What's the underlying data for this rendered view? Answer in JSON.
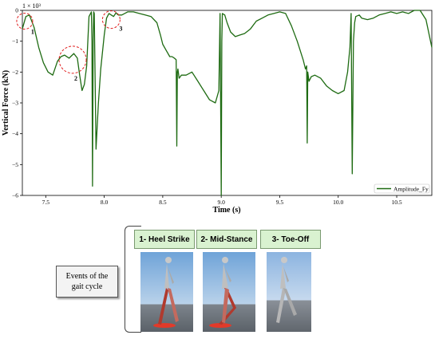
{
  "chart_data": {
    "type": "line",
    "xlabel": "Time (s)",
    "ylabel": "Vertical Force (kN)",
    "multiplier_label": "1 × 10³",
    "xlim": [
      7.3,
      10.8
    ],
    "ylim": [
      -6.0,
      0.0
    ],
    "x_ticks": [
      7.5,
      8.0,
      8.5,
      9.0,
      9.5,
      10.0,
      10.5
    ],
    "x_tick_labels": [
      "7.5",
      "8.0",
      "8.5",
      "9.0",
      "9.5",
      "10.0",
      "10.5"
    ],
    "y_ticks": [
      0,
      -1,
      -2,
      -3,
      -4,
      -5,
      -6
    ],
    "y_tick_labels": [
      "0",
      "−1",
      "−2",
      "−3",
      "−4",
      "−5",
      "−6"
    ],
    "legend_position": "bottom-right",
    "series": [
      {
        "name": "Amplitude_Fy",
        "color": "#1e6b12",
        "x": [
          7.3,
          7.33,
          7.36,
          7.4,
          7.44,
          7.48,
          7.52,
          7.56,
          7.6,
          7.63,
          7.66,
          7.7,
          7.74,
          7.77,
          7.79,
          7.81,
          7.83,
          7.85,
          7.87,
          7.89,
          7.895,
          7.9,
          7.905,
          7.91,
          7.915,
          7.93,
          7.95,
          7.97,
          8.0,
          8.02,
          8.04,
          8.06,
          8.08,
          8.1,
          8.12,
          8.15,
          8.2,
          8.25,
          8.3,
          8.35,
          8.4,
          8.45,
          8.48,
          8.5,
          8.53,
          8.56,
          8.58,
          8.6,
          8.615,
          8.62,
          8.625,
          8.63,
          8.64,
          8.66,
          8.7,
          8.75,
          8.8,
          8.85,
          8.9,
          8.95,
          8.98,
          8.99,
          9.0,
          9.005,
          9.01,
          9.03,
          9.05,
          9.08,
          9.12,
          9.16,
          9.2,
          9.25,
          9.3,
          9.35,
          9.4,
          9.45,
          9.5,
          9.55,
          9.6,
          9.65,
          9.7,
          9.72,
          9.73,
          9.735,
          9.74,
          9.75,
          9.77,
          9.8,
          9.85,
          9.9,
          9.95,
          10.0,
          10.05,
          10.08,
          10.1,
          10.11,
          10.12,
          10.13,
          10.14,
          10.15,
          10.18,
          10.2,
          10.25,
          10.3,
          10.35,
          10.4,
          10.45,
          10.5,
          10.55,
          10.6,
          10.65,
          10.7,
          10.75,
          10.8
        ],
        "y": [
          -0.6,
          -0.2,
          -0.15,
          -0.55,
          -1.2,
          -1.7,
          -2.0,
          -2.1,
          -1.65,
          -1.5,
          -1.45,
          -1.55,
          -1.4,
          -1.55,
          -2.1,
          -2.6,
          -2.4,
          -1.8,
          -0.2,
          -0.05,
          -1.0,
          -5.7,
          -1.0,
          -0.05,
          -0.1,
          -4.5,
          -3.0,
          -1.9,
          -0.8,
          -0.25,
          -0.1,
          -0.15,
          -0.2,
          -0.08,
          -0.15,
          -0.15,
          -0.05,
          -0.05,
          -0.1,
          -0.15,
          -0.2,
          -0.4,
          -0.8,
          -1.1,
          -1.3,
          -1.5,
          -1.5,
          -1.55,
          -1.6,
          -4.4,
          -2.0,
          -1.9,
          -2.2,
          -2.1,
          -2.1,
          -2.0,
          -2.3,
          -2.6,
          -2.9,
          -3.0,
          -2.6,
          -0.1,
          -6.0,
          -1.0,
          -0.1,
          -0.15,
          -0.4,
          -0.7,
          -0.85,
          -0.8,
          -0.75,
          -0.6,
          -0.35,
          -0.25,
          -0.15,
          -0.1,
          -0.05,
          -0.1,
          -0.5,
          -1.0,
          -1.6,
          -1.9,
          -1.8,
          -4.3,
          -2.0,
          -2.3,
          -2.15,
          -2.1,
          -2.2,
          -2.45,
          -2.6,
          -2.7,
          -2.6,
          -2.0,
          -1.2,
          -0.1,
          -5.3,
          -1.0,
          -0.4,
          -0.2,
          -0.15,
          -0.25,
          -0.3,
          -0.25,
          -0.15,
          -0.1,
          -0.05,
          -0.1,
          -0.05,
          -0.1,
          -0.0,
          -0.0,
          -0.3,
          -1.2
        ]
      }
    ],
    "annotations": [
      {
        "label": "1",
        "x": 7.32,
        "y": -0.35
      },
      {
        "label": "2",
        "x": 7.73,
        "y": -1.6
      },
      {
        "label": "3",
        "x": 8.06,
        "y": -0.3
      }
    ]
  },
  "events_box": {
    "line1": "Events of the",
    "line2": "gait cycle"
  },
  "phases": [
    {
      "label": "1-  Heel Strike"
    },
    {
      "label": "2-  Mid-Stance"
    },
    {
      "label": "3-  Toe-Off"
    }
  ]
}
